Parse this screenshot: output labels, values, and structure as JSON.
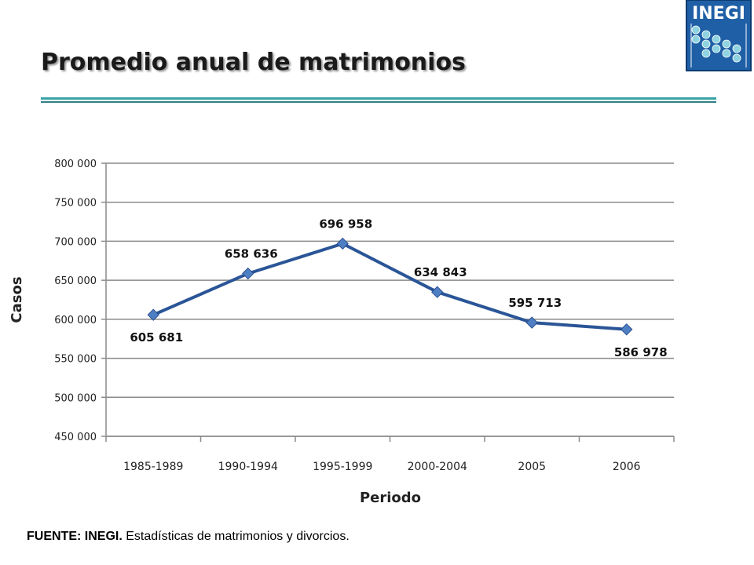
{
  "title": "Promedio anual de matrimonios",
  "logo": {
    "text": "INEGI",
    "color": "#1f5fa6"
  },
  "footer": {
    "source_label": "FUENTE: INEGI.",
    "source_text": " Estadísticas de matrimonios y divorcios."
  },
  "chart_data": {
    "type": "line",
    "title": "",
    "xlabel": "Periodo",
    "ylabel": "Casos",
    "categories": [
      "1985-1989",
      "1990-1994",
      "1995-1999",
      "2000-2004",
      "2005",
      "2006"
    ],
    "values": [
      605681,
      658636,
      696958,
      634843,
      595713,
      586978
    ],
    "value_labels": [
      "605 681",
      "658 636",
      "696 958",
      "634 843",
      "595 713",
      "586 978"
    ],
    "label_positions": [
      "below",
      "above",
      "above",
      "above",
      "above",
      "below"
    ],
    "ylim": [
      450000,
      800000
    ],
    "yticks": [
      450000,
      500000,
      550000,
      600000,
      650000,
      700000,
      750000,
      800000
    ],
    "ytick_labels": [
      "450 000",
      "500 000",
      "550 000",
      "600 000",
      "650 000",
      "700 000",
      "750 000",
      "800 000"
    ],
    "grid": true,
    "line_color": "#2a5597",
    "marker_color": "#4f7fc3"
  }
}
